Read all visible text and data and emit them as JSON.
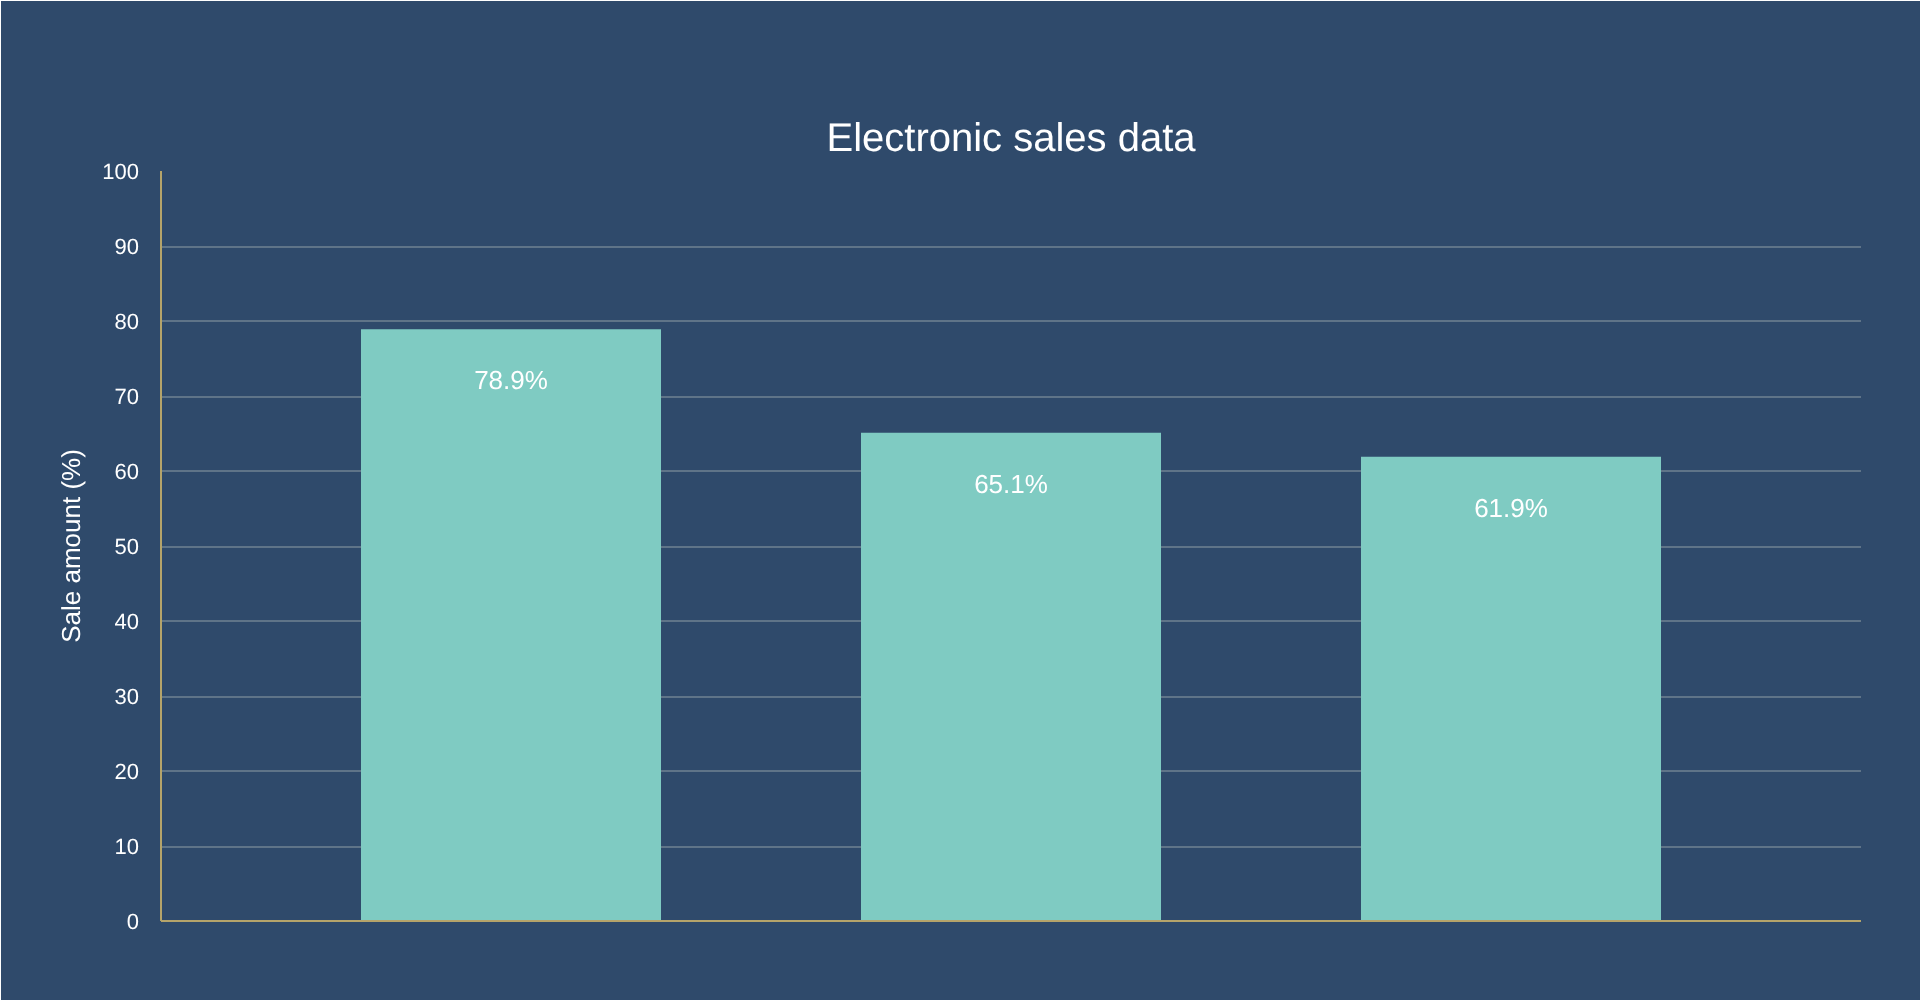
{
  "chart_data": {
    "type": "bar",
    "title": "Electronic sales data",
    "ylabel": "Sale amount (%)",
    "categories": [
      null,
      null,
      null
    ],
    "values": [
      78.9,
      65.1,
      61.9
    ],
    "value_labels": [
      "78.9%",
      "65.1%",
      "61.9%"
    ],
    "color": "#7fcbc2",
    "ylim": [
      0,
      100
    ],
    "yticks": [
      0,
      10,
      20,
      30,
      40,
      50,
      60,
      70,
      80,
      90,
      100
    ],
    "grid": "y"
  }
}
